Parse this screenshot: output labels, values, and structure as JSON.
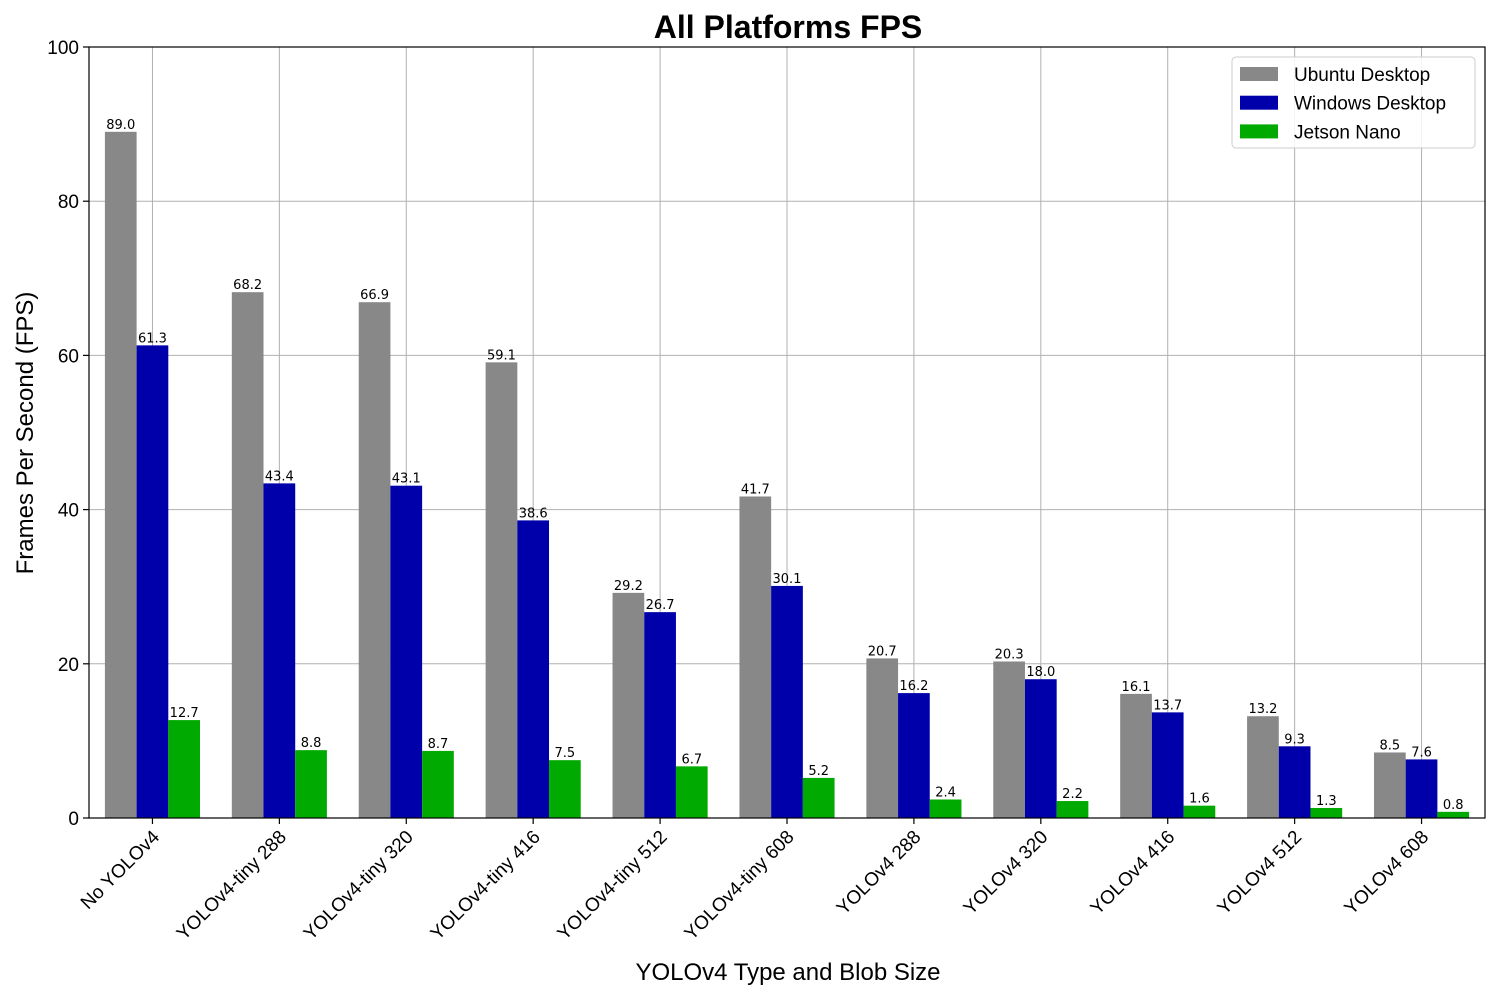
{
  "chart_data": {
    "type": "bar",
    "title": "All Platforms FPS",
    "xlabel": "YOLOv4 Type and Blob Size",
    "ylabel": "Frames Per Second (FPS)",
    "ylim": [
      0,
      100
    ],
    "yticks": [
      0,
      20,
      40,
      60,
      80,
      100
    ],
    "grid": true,
    "legend_position": "top-right",
    "categories": [
      "No YOLOv4",
      "YOLOv4-tiny 288",
      "YOLOv4-tiny 320",
      "YOLOv4-tiny 416",
      "YOLOv4-tiny 512",
      "YOLOv4-tiny 608",
      "YOLOv4 288",
      "YOLOv4 320",
      "YOLOv4 416",
      "YOLOv4 512",
      "YOLOv4 608"
    ],
    "series": [
      {
        "name": "Ubuntu Desktop",
        "color": "#888888",
        "values": [
          89.0,
          68.2,
          66.9,
          59.1,
          29.2,
          41.7,
          20.7,
          20.3,
          16.1,
          13.2,
          8.5
        ],
        "labels": [
          "89.0",
          "68.2",
          "66.9",
          "59.1",
          "29.2",
          "41.7",
          "20.7",
          "20.3",
          "16.1",
          "13.2",
          "8.5"
        ]
      },
      {
        "name": "Windows Desktop",
        "color": "#0000aa",
        "values": [
          61.3,
          43.4,
          43.1,
          38.6,
          26.7,
          30.1,
          16.2,
          18.0,
          13.7,
          9.3,
          7.6
        ],
        "labels": [
          "61.3",
          "43.4",
          "43.1",
          "38.6",
          "26.7",
          "30.1",
          "16.2",
          "18.0",
          "13.7",
          "9.3",
          "7.6"
        ]
      },
      {
        "name": "Jetson Nano",
        "color": "#00aa00",
        "values": [
          12.7,
          8.8,
          8.7,
          7.5,
          6.7,
          5.2,
          2.4,
          2.2,
          1.6,
          1.3,
          0.8
        ],
        "labels": [
          "12.7",
          "8.8",
          "8.7",
          "7.5",
          "6.7",
          "5.2",
          "2.4",
          "2.2",
          "1.6",
          "1.3",
          "0.8"
        ]
      }
    ]
  }
}
